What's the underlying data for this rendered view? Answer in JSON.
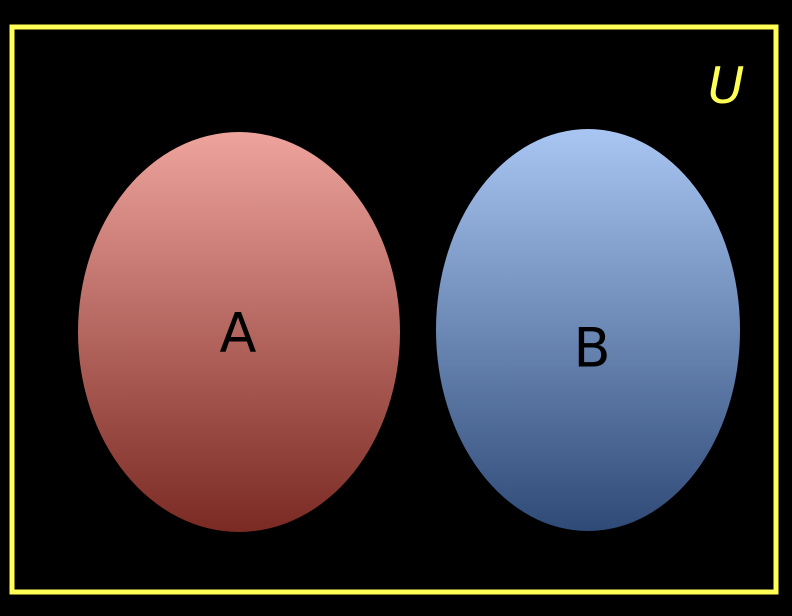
{
  "diagram": {
    "universe": {
      "label": "U",
      "border_color": "#ffff55"
    },
    "sets": [
      {
        "label": "A",
        "color_top": "#eea39d",
        "color_bottom": "#7a2a22"
      },
      {
        "label": "B",
        "color_top": "#a9c6f3",
        "color_bottom": "#2f4a77"
      }
    ],
    "background_color": "#000000"
  }
}
